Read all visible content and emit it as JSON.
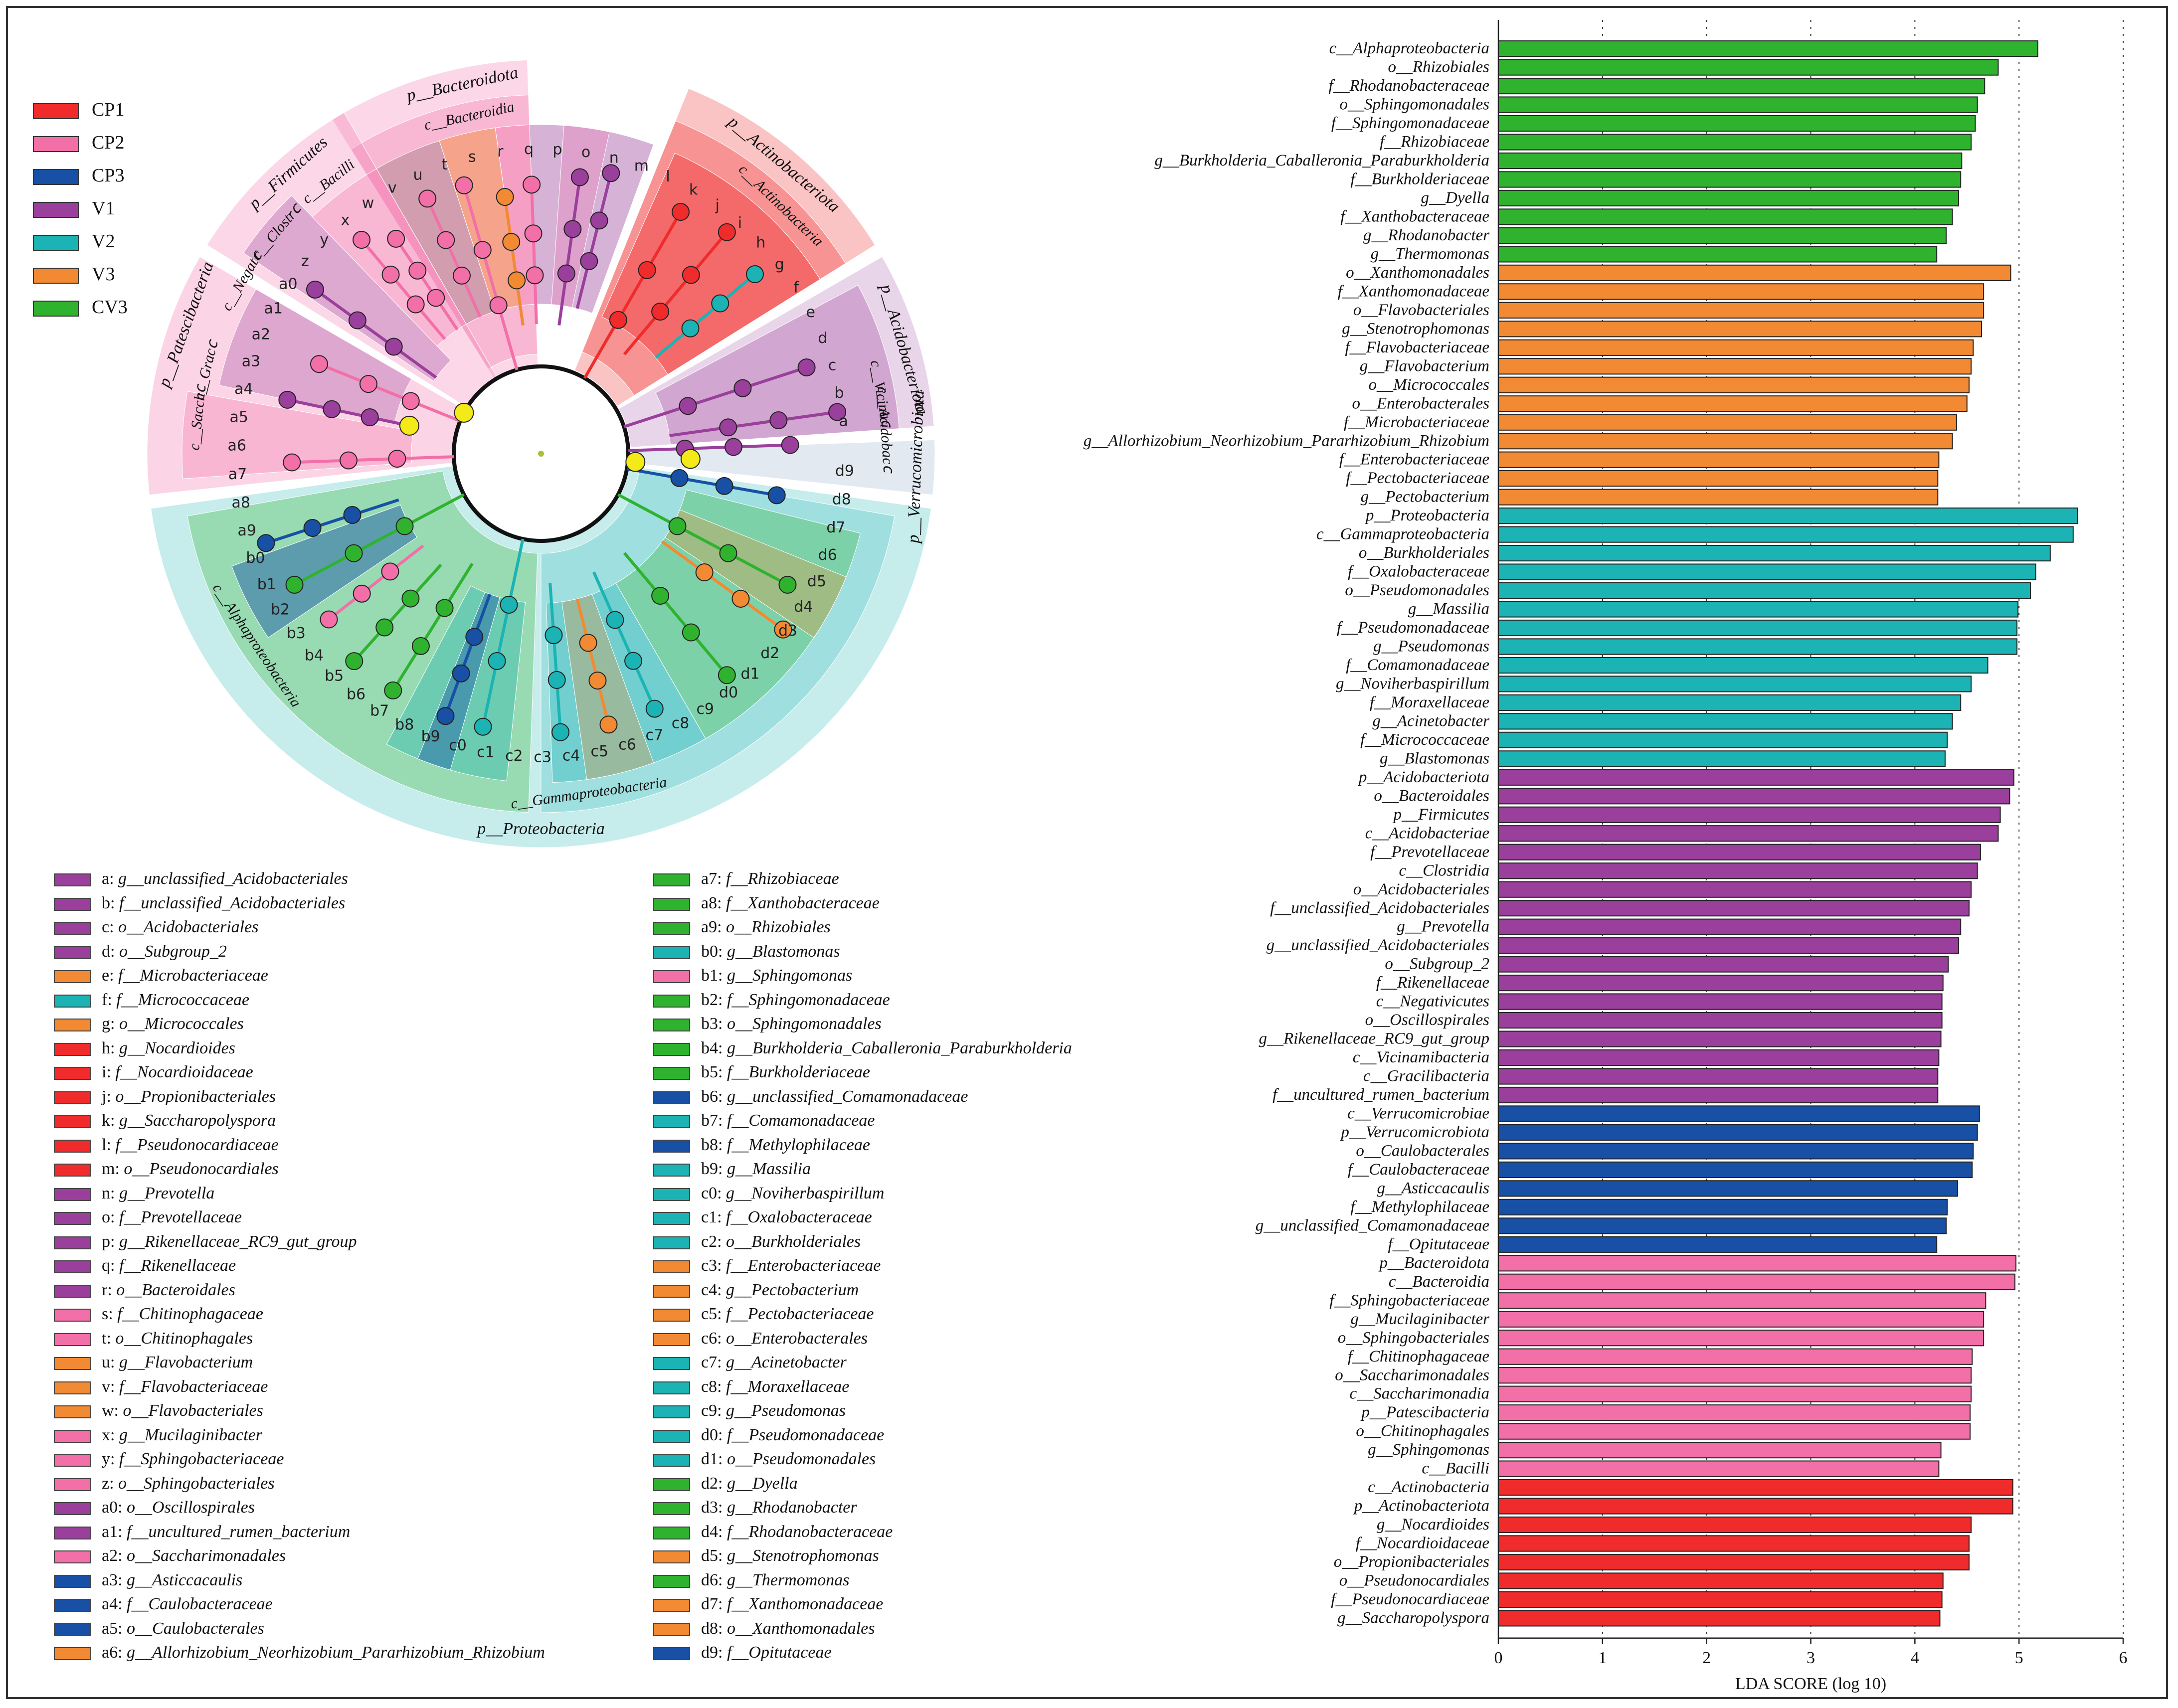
{
  "colors": {
    "CP1": "#ef2b2b",
    "CP2": "#f26fa8",
    "CP3": "#1750a5",
    "V1": "#9a3f9b",
    "V2": "#1bb3b3",
    "V3": "#f28a33",
    "CV3": "#2fb32f"
  },
  "group_legend": [
    {
      "label": "CP1",
      "color": "#ef2b2b"
    },
    {
      "label": "CP2",
      "color": "#f26fa8"
    },
    {
      "label": "CP3",
      "color": "#1750a5"
    },
    {
      "label": "V1",
      "color": "#9a3f9b"
    },
    {
      "label": "V2",
      "color": "#1bb3b3"
    },
    {
      "label": "V3",
      "color": "#f28a33"
    },
    {
      "label": "CV3",
      "color": "#2fb32f"
    }
  ],
  "cladogram": {
    "phylum_labels": [
      "p__Bacteroidota",
      "p__Actinobacteriota",
      "p__Acidobacteriota",
      "p__Verrucomicrobiota",
      "p__Proteobacteria",
      "p__Patescibacteria",
      "p__Firmicutes"
    ],
    "class_labels": [
      "c__Bacteroidia",
      "c__Actinobacteria",
      "c__Vicinaⅽ",
      "c__Acidobacⅽ",
      "c__Alphaproteobacteria",
      "c__Gammaproteobacteria",
      "c__Sacchⅽ",
      "c__Gracⅽ",
      "c__Negatⅽ",
      "c__Clostrⅽ",
      "c__Bacilli"
    ],
    "node_letters": [
      "a",
      "b",
      "c",
      "d",
      "e",
      "f",
      "g",
      "h",
      "i",
      "j",
      "k",
      "l",
      "m",
      "n",
      "o",
      "p",
      "q",
      "r",
      "s",
      "t",
      "u",
      "v",
      "w",
      "x",
      "y",
      "z",
      "a0",
      "a1",
      "a2",
      "a3",
      "a4",
      "a5",
      "a6",
      "a7",
      "a8",
      "a9",
      "b0",
      "b1",
      "b2",
      "b3",
      "b4",
      "b5",
      "b6",
      "b7",
      "b8",
      "b9",
      "c0",
      "c1",
      "c2",
      "c3",
      "c4",
      "c5",
      "c6",
      "c7",
      "c8",
      "c9",
      "d0",
      "d1",
      "d2",
      "d3",
      "d4",
      "d5",
      "d6",
      "d7",
      "d8",
      "d9"
    ]
  },
  "taxa_legend_left": [
    {
      "code": "a: ",
      "name": "g__unclassified_Acidobacteriales",
      "group": "V1"
    },
    {
      "code": "b: ",
      "name": "f__unclassified_Acidobacteriales",
      "group": "V1"
    },
    {
      "code": "c: ",
      "name": "o__Acidobacteriales",
      "group": "V1"
    },
    {
      "code": "d: ",
      "name": "o__Subgroup_2",
      "group": "V1"
    },
    {
      "code": "e: ",
      "name": "f__Microbacteriaceae",
      "group": "V3"
    },
    {
      "code": "f: ",
      "name": "f__Micrococcaceae",
      "group": "V2"
    },
    {
      "code": "g: ",
      "name": "o__Micrococcales",
      "group": "V3"
    },
    {
      "code": "h: ",
      "name": "g__Nocardioides",
      "group": "CP1"
    },
    {
      "code": "i: ",
      "name": "f__Nocardioidaceae",
      "group": "CP1"
    },
    {
      "code": "j: ",
      "name": "o__Propionibacteriales",
      "group": "CP1"
    },
    {
      "code": "k: ",
      "name": "g__Saccharopolyspora",
      "group": "CP1"
    },
    {
      "code": "l: ",
      "name": "f__Pseudonocardiaceae",
      "group": "CP1"
    },
    {
      "code": "m: ",
      "name": "o__Pseudonocardiales",
      "group": "CP1"
    },
    {
      "code": "n: ",
      "name": "g__Prevotella",
      "group": "V1"
    },
    {
      "code": "o: ",
      "name": "f__Prevotellaceae",
      "group": "V1"
    },
    {
      "code": "p: ",
      "name": "g__Rikenellaceae_RC9_gut_group",
      "group": "V1"
    },
    {
      "code": "q: ",
      "name": "f__Rikenellaceae",
      "group": "V1"
    },
    {
      "code": "r: ",
      "name": "o__Bacteroidales",
      "group": "V1"
    },
    {
      "code": "s: ",
      "name": "f__Chitinophagaceae",
      "group": "CP2"
    },
    {
      "code": "t: ",
      "name": "o__Chitinophagales",
      "group": "CP2"
    },
    {
      "code": "u: ",
      "name": "g__Flavobacterium",
      "group": "V3"
    },
    {
      "code": "v: ",
      "name": "f__Flavobacteriaceae",
      "group": "V3"
    },
    {
      "code": "w: ",
      "name": "o__Flavobacteriales",
      "group": "V3"
    },
    {
      "code": "x: ",
      "name": "g__Mucilaginibacter",
      "group": "CP2"
    },
    {
      "code": "y: ",
      "name": "f__Sphingobacteriaceae",
      "group": "CP2"
    },
    {
      "code": "z: ",
      "name": "o__Sphingobacteriales",
      "group": "CP2"
    },
    {
      "code": "a0: ",
      "name": "o__Oscillospirales",
      "group": "V1"
    },
    {
      "code": "a1: ",
      "name": "f__uncultured_rumen_bacterium",
      "group": "V1"
    },
    {
      "code": "a2: ",
      "name": "o__Saccharimonadales",
      "group": "CP2"
    },
    {
      "code": "a3: ",
      "name": "g__Asticcacaulis",
      "group": "CP3"
    },
    {
      "code": "a4: ",
      "name": "f__Caulobacteraceae",
      "group": "CP3"
    },
    {
      "code": "a5: ",
      "name": "o__Caulobacterales",
      "group": "CP3"
    },
    {
      "code": "a6: ",
      "name": "g__Allorhizobium_Neorhizobium_Pararhizobium_Rhizobium",
      "group": "V3"
    }
  ],
  "taxa_legend_right": [
    {
      "code": "a7: ",
      "name": "f__Rhizobiaceae",
      "group": "CV3"
    },
    {
      "code": "a8: ",
      "name": "f__Xanthobacteraceae",
      "group": "CV3"
    },
    {
      "code": "a9: ",
      "name": "o__Rhizobiales",
      "group": "CV3"
    },
    {
      "code": "b0: ",
      "name": "g__Blastomonas",
      "group": "V2"
    },
    {
      "code": "b1: ",
      "name": "g__Sphingomonas",
      "group": "CP2"
    },
    {
      "code": "b2: ",
      "name": "f__Sphingomonadaceae",
      "group": "CV3"
    },
    {
      "code": "b3: ",
      "name": "o__Sphingomonadales",
      "group": "CV3"
    },
    {
      "code": "b4: ",
      "name": "g__Burkholderia_Caballeronia_Paraburkholderia",
      "group": "CV3"
    },
    {
      "code": "b5: ",
      "name": "f__Burkholderiaceae",
      "group": "CV3"
    },
    {
      "code": "b6: ",
      "name": "g__unclassified_Comamonadaceae",
      "group": "CP3"
    },
    {
      "code": "b7: ",
      "name": "f__Comamonadaceae",
      "group": "V2"
    },
    {
      "code": "b8: ",
      "name": "f__Methylophilaceae",
      "group": "CP3"
    },
    {
      "code": "b9: ",
      "name": "g__Massilia",
      "group": "V2"
    },
    {
      "code": "c0: ",
      "name": "g__Noviherbaspirillum",
      "group": "V2"
    },
    {
      "code": "c1: ",
      "name": "f__Oxalobacteraceae",
      "group": "V2"
    },
    {
      "code": "c2: ",
      "name": "o__Burkholderiales",
      "group": "V2"
    },
    {
      "code": "c3: ",
      "name": "f__Enterobacteriaceae",
      "group": "V3"
    },
    {
      "code": "c4: ",
      "name": "g__Pectobacterium",
      "group": "V3"
    },
    {
      "code": "c5: ",
      "name": "f__Pectobacteriaceae",
      "group": "V3"
    },
    {
      "code": "c6: ",
      "name": "o__Enterobacterales",
      "group": "V3"
    },
    {
      "code": "c7: ",
      "name": "g__Acinetobacter",
      "group": "V2"
    },
    {
      "code": "c8: ",
      "name": "f__Moraxellaceae",
      "group": "V2"
    },
    {
      "code": "c9: ",
      "name": "g__Pseudomonas",
      "group": "V2"
    },
    {
      "code": "d0: ",
      "name": "f__Pseudomonadaceae",
      "group": "V2"
    },
    {
      "code": "d1: ",
      "name": "o__Pseudomonadales",
      "group": "V2"
    },
    {
      "code": "d2: ",
      "name": "g__Dyella",
      "group": "CV3"
    },
    {
      "code": "d3: ",
      "name": "g__Rhodanobacter",
      "group": "CV3"
    },
    {
      "code": "d4: ",
      "name": "f__Rhodanobacteraceae",
      "group": "CV3"
    },
    {
      "code": "d5: ",
      "name": "g__Stenotrophomonas",
      "group": "V3"
    },
    {
      "code": "d6: ",
      "name": "g__Thermomonas",
      "group": "CV3"
    },
    {
      "code": "d7: ",
      "name": "f__Xanthomonadaceae",
      "group": "V3"
    },
    {
      "code": "d8: ",
      "name": "o__Xanthomonadales",
      "group": "V3"
    },
    {
      "code": "d9: ",
      "name": "f__Opitutaceae",
      "group": "CP3"
    }
  ],
  "chart_data": {
    "type": "bar",
    "orientation": "horizontal",
    "xlabel": "LDA SCORE (log 10)",
    "xlim": [
      0,
      6
    ],
    "xticks": [
      0,
      1,
      2,
      3,
      4,
      5,
      6
    ],
    "grid": "dotted vertical",
    "bars": [
      {
        "label": "c__Alphaproteobacteria",
        "value": 5.18,
        "group": "CV3"
      },
      {
        "label": "o__Rhizobiales",
        "value": 4.8,
        "group": "CV3"
      },
      {
        "label": "f__Rhodanobacteraceae",
        "value": 4.67,
        "group": "CV3"
      },
      {
        "label": "o__Sphingomonadales",
        "value": 4.6,
        "group": "CV3"
      },
      {
        "label": "f__Sphingomonadaceae",
        "value": 4.58,
        "group": "CV3"
      },
      {
        "label": "f__Rhizobiaceae",
        "value": 4.54,
        "group": "CV3"
      },
      {
        "label": "g__Burkholderia_Caballeronia_Paraburkholderia",
        "value": 4.45,
        "group": "CV3"
      },
      {
        "label": "f__Burkholderiaceae",
        "value": 4.44,
        "group": "CV3"
      },
      {
        "label": "g__Dyella",
        "value": 4.42,
        "group": "CV3"
      },
      {
        "label": "f__Xanthobacteraceae",
        "value": 4.36,
        "group": "CV3"
      },
      {
        "label": "g__Rhodanobacter",
        "value": 4.3,
        "group": "CV3"
      },
      {
        "label": "g__Thermomonas",
        "value": 4.21,
        "group": "CV3"
      },
      {
        "label": "o__Xanthomonadales",
        "value": 4.92,
        "group": "V3"
      },
      {
        "label": "f__Xanthomonadaceae",
        "value": 4.66,
        "group": "V3"
      },
      {
        "label": "o__Flavobacteriales",
        "value": 4.66,
        "group": "V3"
      },
      {
        "label": "g__Stenotrophomonas",
        "value": 4.64,
        "group": "V3"
      },
      {
        "label": "f__Flavobacteriaceae",
        "value": 4.56,
        "group": "V3"
      },
      {
        "label": "g__Flavobacterium",
        "value": 4.54,
        "group": "V3"
      },
      {
        "label": "o__Micrococcales",
        "value": 4.52,
        "group": "V3"
      },
      {
        "label": "o__Enterobacterales",
        "value": 4.5,
        "group": "V3"
      },
      {
        "label": "f__Microbacteriaceae",
        "value": 4.4,
        "group": "V3"
      },
      {
        "label": "g__Allorhizobium_Neorhizobium_Pararhizobium_Rhizobium",
        "value": 4.36,
        "group": "V3"
      },
      {
        "label": "f__Enterobacteriaceae",
        "value": 4.23,
        "group": "V3"
      },
      {
        "label": "f__Pectobacteriaceae",
        "value": 4.22,
        "group": "V3"
      },
      {
        "label": "g__Pectobacterium",
        "value": 4.22,
        "group": "V3"
      },
      {
        "label": "p__Proteobacteria",
        "value": 5.56,
        "group": "V2"
      },
      {
        "label": "c__Gammaproteobacteria",
        "value": 5.52,
        "group": "V2"
      },
      {
        "label": "o__Burkholderiales",
        "value": 5.3,
        "group": "V2"
      },
      {
        "label": "f__Oxalobacteraceae",
        "value": 5.16,
        "group": "V2"
      },
      {
        "label": "o__Pseudomonadales",
        "value": 5.11,
        "group": "V2"
      },
      {
        "label": "g__Massilia",
        "value": 4.99,
        "group": "V2"
      },
      {
        "label": "f__Pseudomonadaceae",
        "value": 4.98,
        "group": "V2"
      },
      {
        "label": "g__Pseudomonas",
        "value": 4.98,
        "group": "V2"
      },
      {
        "label": "f__Comamonadaceae",
        "value": 4.7,
        "group": "V2"
      },
      {
        "label": "g__Noviherbaspirillum",
        "value": 4.54,
        "group": "V2"
      },
      {
        "label": "f__Moraxellaceae",
        "value": 4.44,
        "group": "V2"
      },
      {
        "label": "g__Acinetobacter",
        "value": 4.36,
        "group": "V2"
      },
      {
        "label": "f__Micrococcaceae",
        "value": 4.31,
        "group": "V2"
      },
      {
        "label": "g__Blastomonas",
        "value": 4.29,
        "group": "V2"
      },
      {
        "label": "p__Acidobacteriota",
        "value": 4.95,
        "group": "V1"
      },
      {
        "label": "o__Bacteroidales",
        "value": 4.91,
        "group": "V1"
      },
      {
        "label": "p__Firmicutes",
        "value": 4.82,
        "group": "V1"
      },
      {
        "label": "c__Acidobacteriae",
        "value": 4.8,
        "group": "V1"
      },
      {
        "label": "f__Prevotellaceae",
        "value": 4.63,
        "group": "V1"
      },
      {
        "label": "c__Clostridia",
        "value": 4.6,
        "group": "V1"
      },
      {
        "label": "o__Acidobacteriales",
        "value": 4.54,
        "group": "V1"
      },
      {
        "label": "f__unclassified_Acidobacteriales",
        "value": 4.52,
        "group": "V1"
      },
      {
        "label": "g__Prevotella",
        "value": 4.44,
        "group": "V1"
      },
      {
        "label": "g__unclassified_Acidobacteriales",
        "value": 4.42,
        "group": "V1"
      },
      {
        "label": "o__Subgroup_2",
        "value": 4.32,
        "group": "V1"
      },
      {
        "label": "f__Rikenellaceae",
        "value": 4.27,
        "group": "V1"
      },
      {
        "label": "c__Negativicutes",
        "value": 4.26,
        "group": "V1"
      },
      {
        "label": "o__Oscillospirales",
        "value": 4.26,
        "group": "V1"
      },
      {
        "label": "g__Rikenellaceae_RC9_gut_group",
        "value": 4.25,
        "group": "V1"
      },
      {
        "label": "c__Vicinamibacteria",
        "value": 4.23,
        "group": "V1"
      },
      {
        "label": "c__Gracilibacteria",
        "value": 4.22,
        "group": "V1"
      },
      {
        "label": "f__uncultured_rumen_bacterium",
        "value": 4.22,
        "group": "V1"
      },
      {
        "label": "c__Verrucomicrobiae",
        "value": 4.62,
        "group": "CP3"
      },
      {
        "label": "p__Verrucomicrobiota",
        "value": 4.6,
        "group": "CP3"
      },
      {
        "label": "o__Caulobacterales",
        "value": 4.56,
        "group": "CP3"
      },
      {
        "label": "f__Caulobacteraceae",
        "value": 4.55,
        "group": "CP3"
      },
      {
        "label": "g__Asticcacaulis",
        "value": 4.41,
        "group": "CP3"
      },
      {
        "label": "f__Methylophilaceae",
        "value": 4.31,
        "group": "CP3"
      },
      {
        "label": "g__unclassified_Comamonadaceae",
        "value": 4.3,
        "group": "CP3"
      },
      {
        "label": "f__Opitutaceae",
        "value": 4.21,
        "group": "CP3"
      },
      {
        "label": "p__Bacteroidota",
        "value": 4.97,
        "group": "CP2"
      },
      {
        "label": "c__Bacteroidia",
        "value": 4.96,
        "group": "CP2"
      },
      {
        "label": "f__Sphingobacteriaceae",
        "value": 4.68,
        "group": "CP2"
      },
      {
        "label": "g__Mucilaginibacter",
        "value": 4.66,
        "group": "CP2"
      },
      {
        "label": "o__Sphingobacteriales",
        "value": 4.66,
        "group": "CP2"
      },
      {
        "label": "f__Chitinophagaceae",
        "value": 4.55,
        "group": "CP2"
      },
      {
        "label": "o__Saccharimonadales",
        "value": 4.54,
        "group": "CP2"
      },
      {
        "label": "c__Saccharimonadia",
        "value": 4.54,
        "group": "CP2"
      },
      {
        "label": "p__Patescibacteria",
        "value": 4.53,
        "group": "CP2"
      },
      {
        "label": "o__Chitinophagales",
        "value": 4.53,
        "group": "CP2"
      },
      {
        "label": "g__Sphingomonas",
        "value": 4.25,
        "group": "CP2"
      },
      {
        "label": "c__Bacilli",
        "value": 4.23,
        "group": "CP2"
      },
      {
        "label": "c__Actinobacteria",
        "value": 4.94,
        "group": "CP1"
      },
      {
        "label": "p__Actinobacteriota",
        "value": 4.94,
        "group": "CP1"
      },
      {
        "label": "g__Nocardioides",
        "value": 4.54,
        "group": "CP1"
      },
      {
        "label": "f__Nocardioidaceae",
        "value": 4.52,
        "group": "CP1"
      },
      {
        "label": "o__Propionibacteriales",
        "value": 4.52,
        "group": "CP1"
      },
      {
        "label": "o__Pseudonocardiales",
        "value": 4.27,
        "group": "CP1"
      },
      {
        "label": "f__Pseudonocardiaceae",
        "value": 4.26,
        "group": "CP1"
      },
      {
        "label": "g__Saccharopolyspora",
        "value": 4.24,
        "group": "CP1"
      }
    ]
  }
}
